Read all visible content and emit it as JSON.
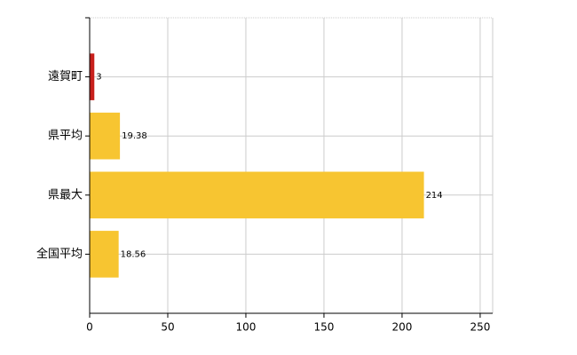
{
  "chart_data": {
    "type": "bar",
    "orientation": "horizontal",
    "categories": [
      "遠賀町",
      "県平均",
      "県最大",
      "全国平均"
    ],
    "values": [
      3,
      19.38,
      214,
      18.56
    ],
    "colors": [
      "#c8201c",
      "#f7c531",
      "#f7c531",
      "#f7c531"
    ],
    "xlim": [
      0,
      258
    ],
    "xticks": [
      0,
      50,
      100,
      150,
      200,
      250
    ],
    "grid": true
  }
}
